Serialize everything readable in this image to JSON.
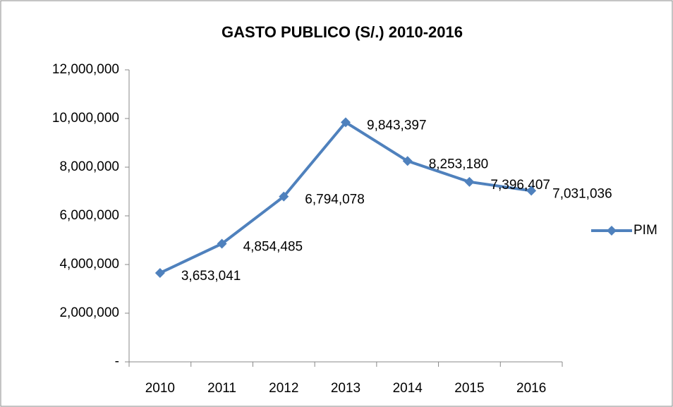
{
  "chart_data": {
    "type": "line",
    "title": "GASTO PUBLICO (S/.) 2010-2016",
    "categories": [
      "2010",
      "2011",
      "2012",
      "2013",
      "2014",
      "2015",
      "2016"
    ],
    "series": [
      {
        "name": "PIM",
        "color": "#4f81bd",
        "values": [
          3653041,
          4854485,
          6794078,
          9843397,
          8253180,
          7396407,
          7031036
        ],
        "value_labels": [
          "3,653,041",
          "4,854,485",
          "6,794,078",
          "9,843,397",
          "8,253,180",
          "7,396,407",
          "7,031,036"
        ]
      }
    ],
    "ylim": [
      0,
      12000000
    ],
    "yticks": [
      {
        "value": 0,
        "label": "-"
      },
      {
        "value": 2000000,
        "label": "2,000,000"
      },
      {
        "value": 4000000,
        "label": "4,000,000"
      },
      {
        "value": 6000000,
        "label": "6,000,000"
      },
      {
        "value": 8000000,
        "label": "8,000,000"
      },
      {
        "value": 10000000,
        "label": "10,000,000"
      },
      {
        "value": 12000000,
        "label": "12,000,000"
      }
    ],
    "grid": false,
    "legend": "right"
  }
}
